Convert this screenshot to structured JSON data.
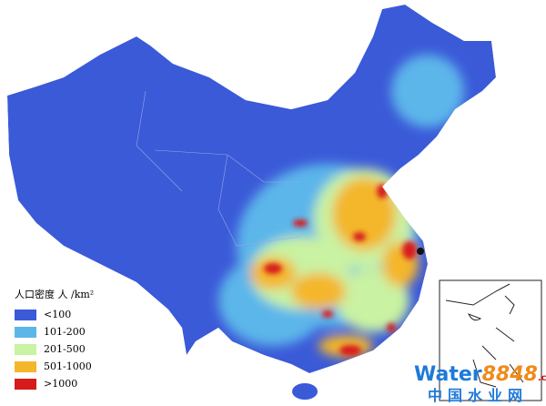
{
  "legend": {
    "title": "人口密度 人 /km²",
    "items": [
      {
        "label": "<100",
        "color": "#3b5ad8"
      },
      {
        "label": "101-200",
        "color": "#5cb6ea"
      },
      {
        "label": "201-500",
        "color": "#c9f2a2"
      },
      {
        "label": "501-1000",
        "color": "#f4b62a"
      },
      {
        "label": ">1000",
        "color": "#d71a1a"
      }
    ]
  },
  "watermark": {
    "parts": [
      "Water",
      "8848",
      ".com"
    ],
    "subtitle": "中国水业网"
  }
}
